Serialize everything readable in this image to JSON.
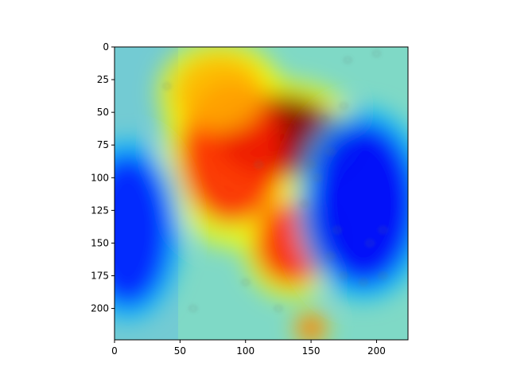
{
  "chart_data": {
    "type": "heatmap",
    "title": "",
    "xlabel": "",
    "ylabel": "",
    "xlim": [
      0,
      224
    ],
    "ylim": [
      224,
      0
    ],
    "y_inverted": true,
    "grid": false,
    "colormap": "jet",
    "overlay_alpha": 0.55,
    "x_ticks": [
      0,
      50,
      100,
      150,
      200
    ],
    "y_ticks": [
      0,
      25,
      50,
      75,
      100,
      125,
      150,
      175,
      200
    ],
    "heat_regions": [
      {
        "x": 125,
        "y": 68,
        "rx": 48,
        "ry": 32,
        "level": 1.0
      },
      {
        "x": 140,
        "y": 72,
        "rx": 22,
        "ry": 18,
        "level": 1.0
      },
      {
        "x": 90,
        "y": 80,
        "rx": 40,
        "ry": 55,
        "level": 0.85
      },
      {
        "x": 135,
        "y": 150,
        "rx": 28,
        "ry": 32,
        "level": 0.85
      },
      {
        "x": 80,
        "y": 35,
        "rx": 35,
        "ry": 30,
        "level": 0.7
      },
      {
        "x": 150,
        "y": 215,
        "rx": 10,
        "ry": 10,
        "level": 0.85
      }
    ],
    "cold_regions": [
      {
        "x": 190,
        "y": 120,
        "rx": 40,
        "ry": 62,
        "level": 0.12
      },
      {
        "x": 10,
        "y": 140,
        "rx": 32,
        "ry": 58,
        "level": 0.15
      }
    ]
  }
}
